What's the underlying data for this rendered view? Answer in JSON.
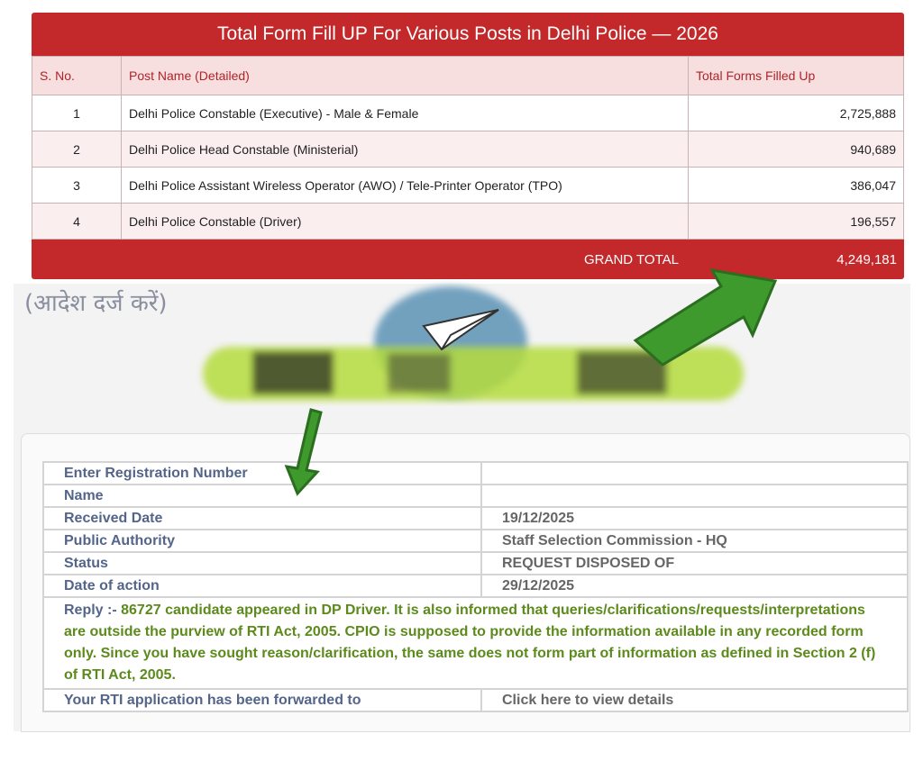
{
  "forms_table": {
    "title": "Total Form Fill UP For Various Posts in Delhi Police — 2026",
    "headers": [
      "S. No.",
      "Post Name (Detailed)",
      "Total Forms Filled Up"
    ],
    "rows": [
      {
        "sno": "1",
        "post": "Delhi Police Constable (Executive) - Male & Female",
        "total": "2,725,888"
      },
      {
        "sno": "2",
        "post": "Delhi Police Head Constable (Ministerial)",
        "total": "940,689"
      },
      {
        "sno": "3",
        "post": "Delhi Police Assistant Wireless Operator (AWO) / Tele-Printer Operator (TPO)",
        "total": "386,047"
      },
      {
        "sno": "4",
        "post": "Delhi Police Constable (Driver)",
        "total": "196,557"
      }
    ],
    "grand_total_label": "GRAND TOTAL",
    "grand_total_value": "4,249,181"
  },
  "rti": {
    "hindi_fragment": "(आदेश दर्ज करें)",
    "fields": [
      {
        "label": "Enter Registration Number",
        "value": ""
      },
      {
        "label": "Name",
        "value": ""
      },
      {
        "label": "Received Date",
        "value": "19/12/2025"
      },
      {
        "label": "Public Authority",
        "value": "Staff Selection Commission - HQ"
      },
      {
        "label": "Status",
        "value": "REQUEST DISPOSED OF"
      },
      {
        "label": "Date of action",
        "value": "29/12/2025"
      }
    ],
    "reply_label": "Reply :-",
    "reply_text": "86727 candidate appeared in DP Driver. It is also informed that queries/clarifications/requests/interpretations are outside the purview of RTI Act, 2005. CPIO is supposed to provide the information available in any recorded form only. Since you have sought reason/clarification, the same does not form part of information as defined in Section 2 (f) of RTI Act, 2005.",
    "forwarded_label": "Your RTI application has been forwarded to",
    "details_link": "Click here to view details"
  },
  "colors": {
    "table_red": "#c3292b",
    "header_pink": "#f7dfdf",
    "arrow_green": "#3f9a2e",
    "reply_green": "#5c8a1c",
    "scribble_blue": "#5b93b5"
  },
  "icons": [
    "paper-plane-icon",
    "arrow-annotation-icon"
  ]
}
